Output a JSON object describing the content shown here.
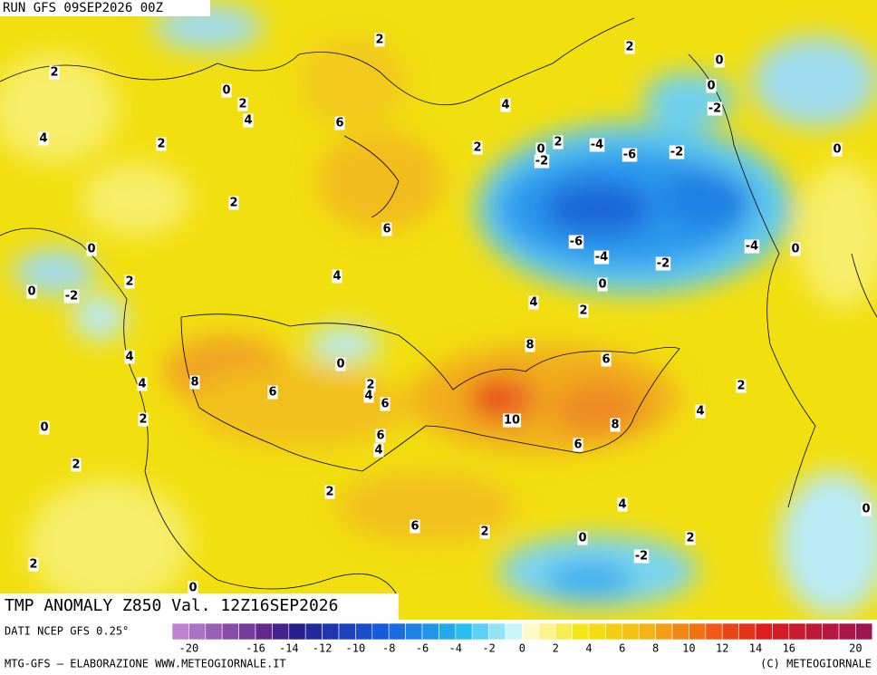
{
  "header": {
    "run": "RUN GFS 09SEP2026 00Z"
  },
  "map": {
    "title": "TMP ANOMALY Z850 Val. 12Z16SEP2026",
    "contour_labels": [
      "2",
      "2",
      "0",
      "2",
      "0",
      "2",
      "0",
      "-2",
      "4",
      "4",
      "6",
      "4",
      "2",
      "2",
      "0",
      "-4",
      "-6",
      "-2",
      "-2",
      "2",
      "0",
      "2",
      "6",
      "0",
      "-6",
      "-4",
      "-2",
      "-4",
      "0",
      "4",
      "2",
      "0",
      "-2",
      "0",
      "4",
      "2",
      "8",
      "6",
      "4",
      "0",
      "8",
      "4",
      "2",
      "6",
      "4",
      "6",
      "2",
      "10",
      "8",
      "4",
      "0",
      "2",
      "6",
      "4",
      "6",
      "2",
      "2",
      "4",
      "6",
      "2",
      "0",
      "2",
      "-2",
      "0",
      "2",
      "0"
    ]
  },
  "legend": {
    "source": "DATI NCEP GFS 0.25°",
    "labels": [
      "-20",
      "-16",
      "-14",
      "-12",
      "-10",
      "-8",
      "-6",
      "-4",
      "-2",
      "0",
      "2",
      "4",
      "6",
      "8",
      "10",
      "12",
      "14",
      "16",
      "20"
    ]
  },
  "footer": {
    "left": "MTG-GFS – ELABORAZIONE WWW.METEOGIORNALE.IT",
    "right": "(C) METEOGIORNALE"
  }
}
